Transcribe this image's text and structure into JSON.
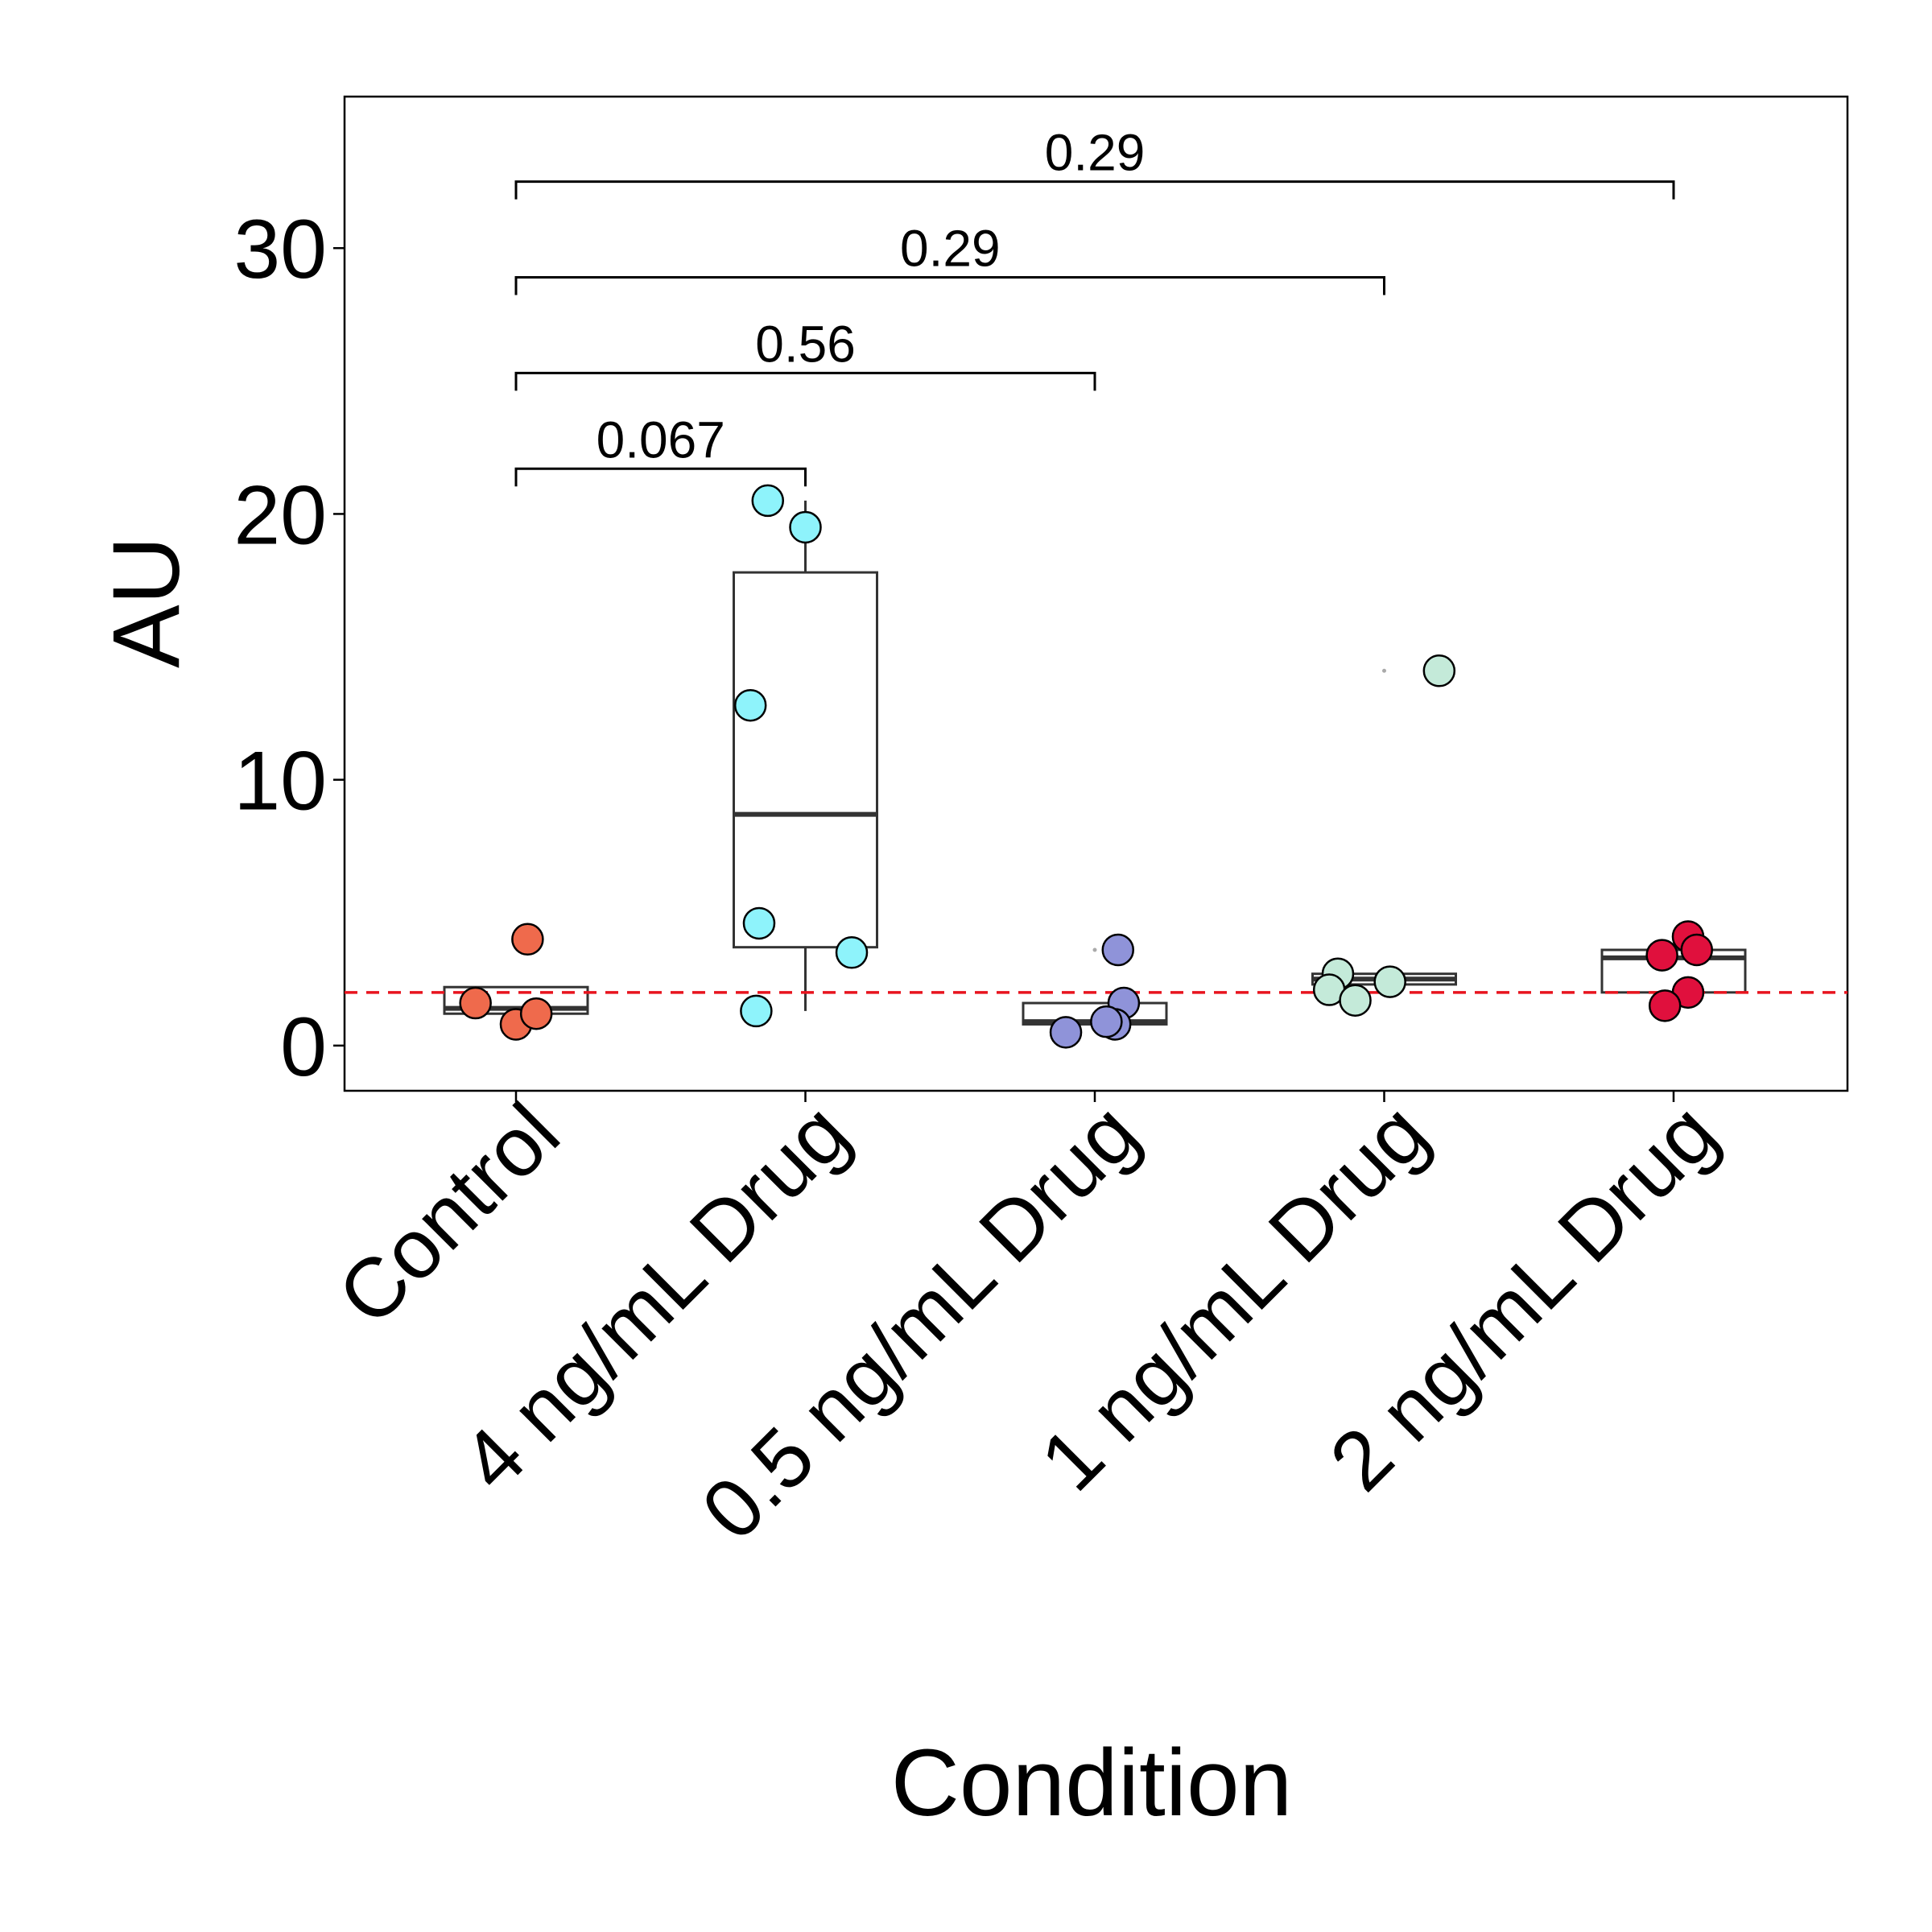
{
  "chart_data": {
    "type": "boxplot",
    "title": "",
    "xlabel": "Condition",
    "ylabel": "AU",
    "ylim": [
      -1.7,
      35.7
    ],
    "yticks": [
      0,
      10,
      20,
      30
    ],
    "reference_line": {
      "y": 2.0,
      "color": "#e8141e",
      "style": "dashed"
    },
    "categories": [
      "Control",
      "4 ng/mL Drug",
      "0.5 ng/mL Drug",
      "1 ng/mL Drug",
      "2 ng/mL Drug"
    ],
    "groups": [
      {
        "name": "Control",
        "color": "#ef6a4c",
        "box": {
          "whisker_low": 1.2,
          "q1": 1.2,
          "median": 1.4,
          "q3": 2.2,
          "whisker_high": 2.2
        },
        "points": [
          {
            "x": -0.14,
            "y": 1.6
          },
          {
            "x": 0.0,
            "y": 0.8
          },
          {
            "x": 0.07,
            "y": 1.2
          },
          {
            "x": 0.04,
            "y": 4.0
          }
        ]
      },
      {
        "name": "4 ng/mL Drug",
        "color": "#8ef3fb",
        "box": {
          "whisker_low": 1.3,
          "q1": 3.7,
          "median": 8.7,
          "q3": 17.8,
          "whisker_high": 20.5
        },
        "points": [
          {
            "x": -0.13,
            "y": 20.5
          },
          {
            "x": 0.0,
            "y": 19.5
          },
          {
            "x": -0.19,
            "y": 12.8
          },
          {
            "x": -0.16,
            "y": 4.6
          },
          {
            "x": 0.16,
            "y": 3.5
          },
          {
            "x": -0.17,
            "y": 1.3
          }
        ]
      },
      {
        "name": "0.5 ng/mL Drug",
        "color": "#8f93d9",
        "box": {
          "whisker_low": 0.8,
          "q1": 0.8,
          "median": 0.9,
          "q3": 1.6,
          "whisker_high": 1.6
        },
        "outliers": [
          3.6
        ],
        "points": [
          {
            "x": 0.08,
            "y": 3.6
          },
          {
            "x": 0.1,
            "y": 1.6
          },
          {
            "x": 0.07,
            "y": 0.8
          },
          {
            "x": 0.04,
            "y": 0.9
          },
          {
            "x": -0.1,
            "y": 0.5
          }
        ]
      },
      {
        "name": "1 ng/mL Drug",
        "color": "#c4ead9",
        "box": {
          "whisker_low": 2.3,
          "q1": 2.3,
          "median": 2.5,
          "q3": 2.7,
          "whisker_high": 2.7
        },
        "outliers": [
          14.1
        ],
        "points": [
          {
            "x": 0.19,
            "y": 14.1
          },
          {
            "x": -0.16,
            "y": 2.7
          },
          {
            "x": 0.02,
            "y": 2.4
          },
          {
            "x": -0.19,
            "y": 2.1
          },
          {
            "x": -0.1,
            "y": 1.7
          }
        ]
      },
      {
        "name": "2 ng/mL Drug",
        "color": "#e0103d",
        "box": {
          "whisker_low": 2.0,
          "q1": 2.0,
          "median": 3.3,
          "q3": 3.6,
          "whisker_high": 3.6
        },
        "points": [
          {
            "x": 0.05,
            "y": 4.1
          },
          {
            "x": 0.08,
            "y": 3.6
          },
          {
            "x": -0.04,
            "y": 3.4
          },
          {
            "x": 0.05,
            "y": 2.0
          },
          {
            "x": -0.03,
            "y": 1.5
          }
        ]
      }
    ],
    "comparisons": [
      {
        "from": "Control",
        "to": "4 ng/mL Drug",
        "p": "0.067",
        "y": 21.7
      },
      {
        "from": "Control",
        "to": "0.5 ng/mL Drug",
        "p": "0.56",
        "y": 25.3
      },
      {
        "from": "Control",
        "to": "1 ng/mL Drug",
        "p": "0.29",
        "y": 28.9
      },
      {
        "from": "Control",
        "to": "2 ng/mL Drug",
        "p": "0.29",
        "y": 32.5
      }
    ]
  }
}
